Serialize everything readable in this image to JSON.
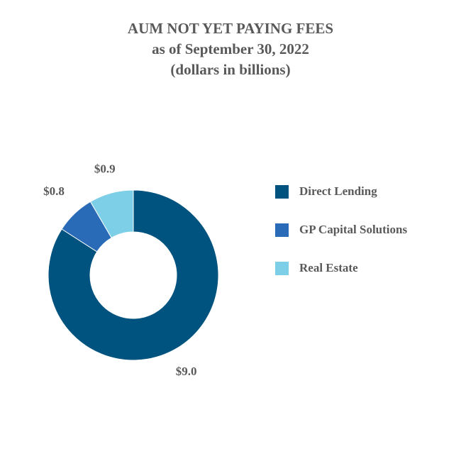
{
  "title": {
    "line1": "AUM NOT YET PAYING FEES",
    "line2": "as of September 30, 2022",
    "line3": "(dollars in billions)"
  },
  "chart_data": {
    "type": "pie",
    "subtype": "donut",
    "title": "AUM NOT YET PAYING FEES as of September 30, 2022 (dollars in billions)",
    "categories": [
      "Direct Lending",
      "GP Capital Solutions",
      "Real Estate"
    ],
    "values": [
      9.0,
      0.8,
      0.9
    ],
    "labels": [
      "$9.0",
      "$0.8",
      "$0.9"
    ],
    "colors": [
      "#00527f",
      "#2a6bb8",
      "#7ccfe6"
    ],
    "legend_position": "right"
  },
  "legend": {
    "items": [
      {
        "label": "Direct Lending",
        "color": "#00527f"
      },
      {
        "label": "GP Capital Solutions",
        "color": "#2a6bb8"
      },
      {
        "label": "Real Estate",
        "color": "#7ccfe6"
      }
    ]
  }
}
